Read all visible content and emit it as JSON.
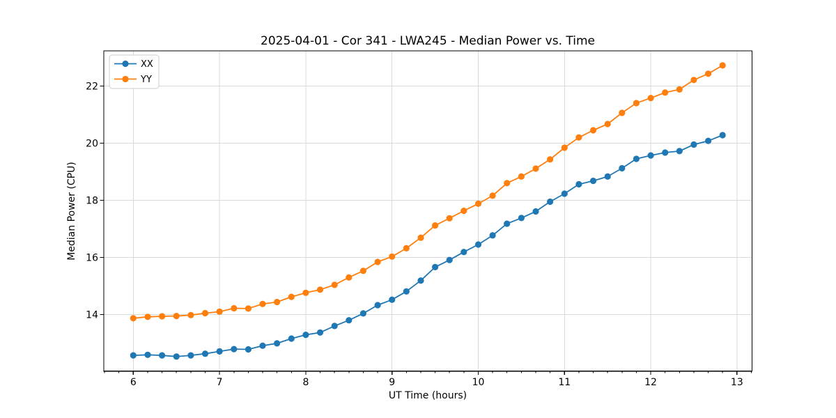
{
  "chart_data": {
    "type": "line",
    "title": "2025-04-01 - Cor 341 - LWA245 - Median Power vs. Time",
    "xlabel": "UT Time (hours)",
    "ylabel": "Median Power (CPU)",
    "xlim": [
      5.658,
      13.175
    ],
    "ylim": [
      12.02,
      23.23
    ],
    "xticks": [
      6,
      7,
      8,
      9,
      10,
      11,
      12,
      13
    ],
    "yticks": [
      14,
      16,
      18,
      20,
      22
    ],
    "minor_xtick_step": 0.16667,
    "grid": true,
    "legend_position": "upper left",
    "background_color": "#ffffff",
    "grid_color": "#d9d9d9",
    "x": [
      6.0,
      6.1667,
      6.3333,
      6.5,
      6.6667,
      6.8333,
      7.0,
      7.1667,
      7.3333,
      7.5,
      7.6667,
      7.8333,
      8.0,
      8.1667,
      8.3333,
      8.5,
      8.6667,
      8.8333,
      9.0,
      9.1667,
      9.3333,
      9.5,
      9.6667,
      9.8333,
      10.0,
      10.1667,
      10.3333,
      10.5,
      10.6667,
      10.8333,
      11.0,
      11.1667,
      11.3333,
      11.5,
      11.6667,
      11.8333,
      12.0,
      12.1667,
      12.3333,
      12.5,
      12.6667,
      12.8333
    ],
    "series": [
      {
        "name": "XX",
        "color": "#1f77b4",
        "values": [
          12.57,
          12.59,
          12.57,
          12.53,
          12.57,
          12.63,
          12.71,
          12.79,
          12.78,
          12.91,
          12.99,
          13.16,
          13.29,
          13.37,
          13.6,
          13.8,
          14.04,
          14.33,
          14.52,
          14.81,
          15.19,
          15.66,
          15.91,
          16.19,
          16.45,
          16.77,
          17.18,
          17.38,
          17.61,
          17.95,
          18.23,
          18.56,
          18.68,
          18.83,
          19.12,
          19.45,
          19.57,
          19.67,
          19.72,
          19.95,
          20.08,
          20.28
        ]
      },
      {
        "name": "YY",
        "color": "#ff7f0e",
        "values": [
          13.87,
          13.92,
          13.94,
          13.95,
          13.98,
          14.05,
          14.1,
          14.22,
          14.21,
          14.37,
          14.44,
          14.62,
          14.76,
          14.87,
          15.04,
          15.3,
          15.53,
          15.84,
          16.03,
          16.32,
          16.69,
          17.12,
          17.37,
          17.63,
          17.88,
          18.16,
          18.6,
          18.83,
          19.11,
          19.43,
          19.84,
          20.2,
          20.45,
          20.67,
          21.06,
          21.4,
          21.58,
          21.77,
          21.88,
          22.21,
          22.43,
          22.72
        ]
      }
    ]
  }
}
